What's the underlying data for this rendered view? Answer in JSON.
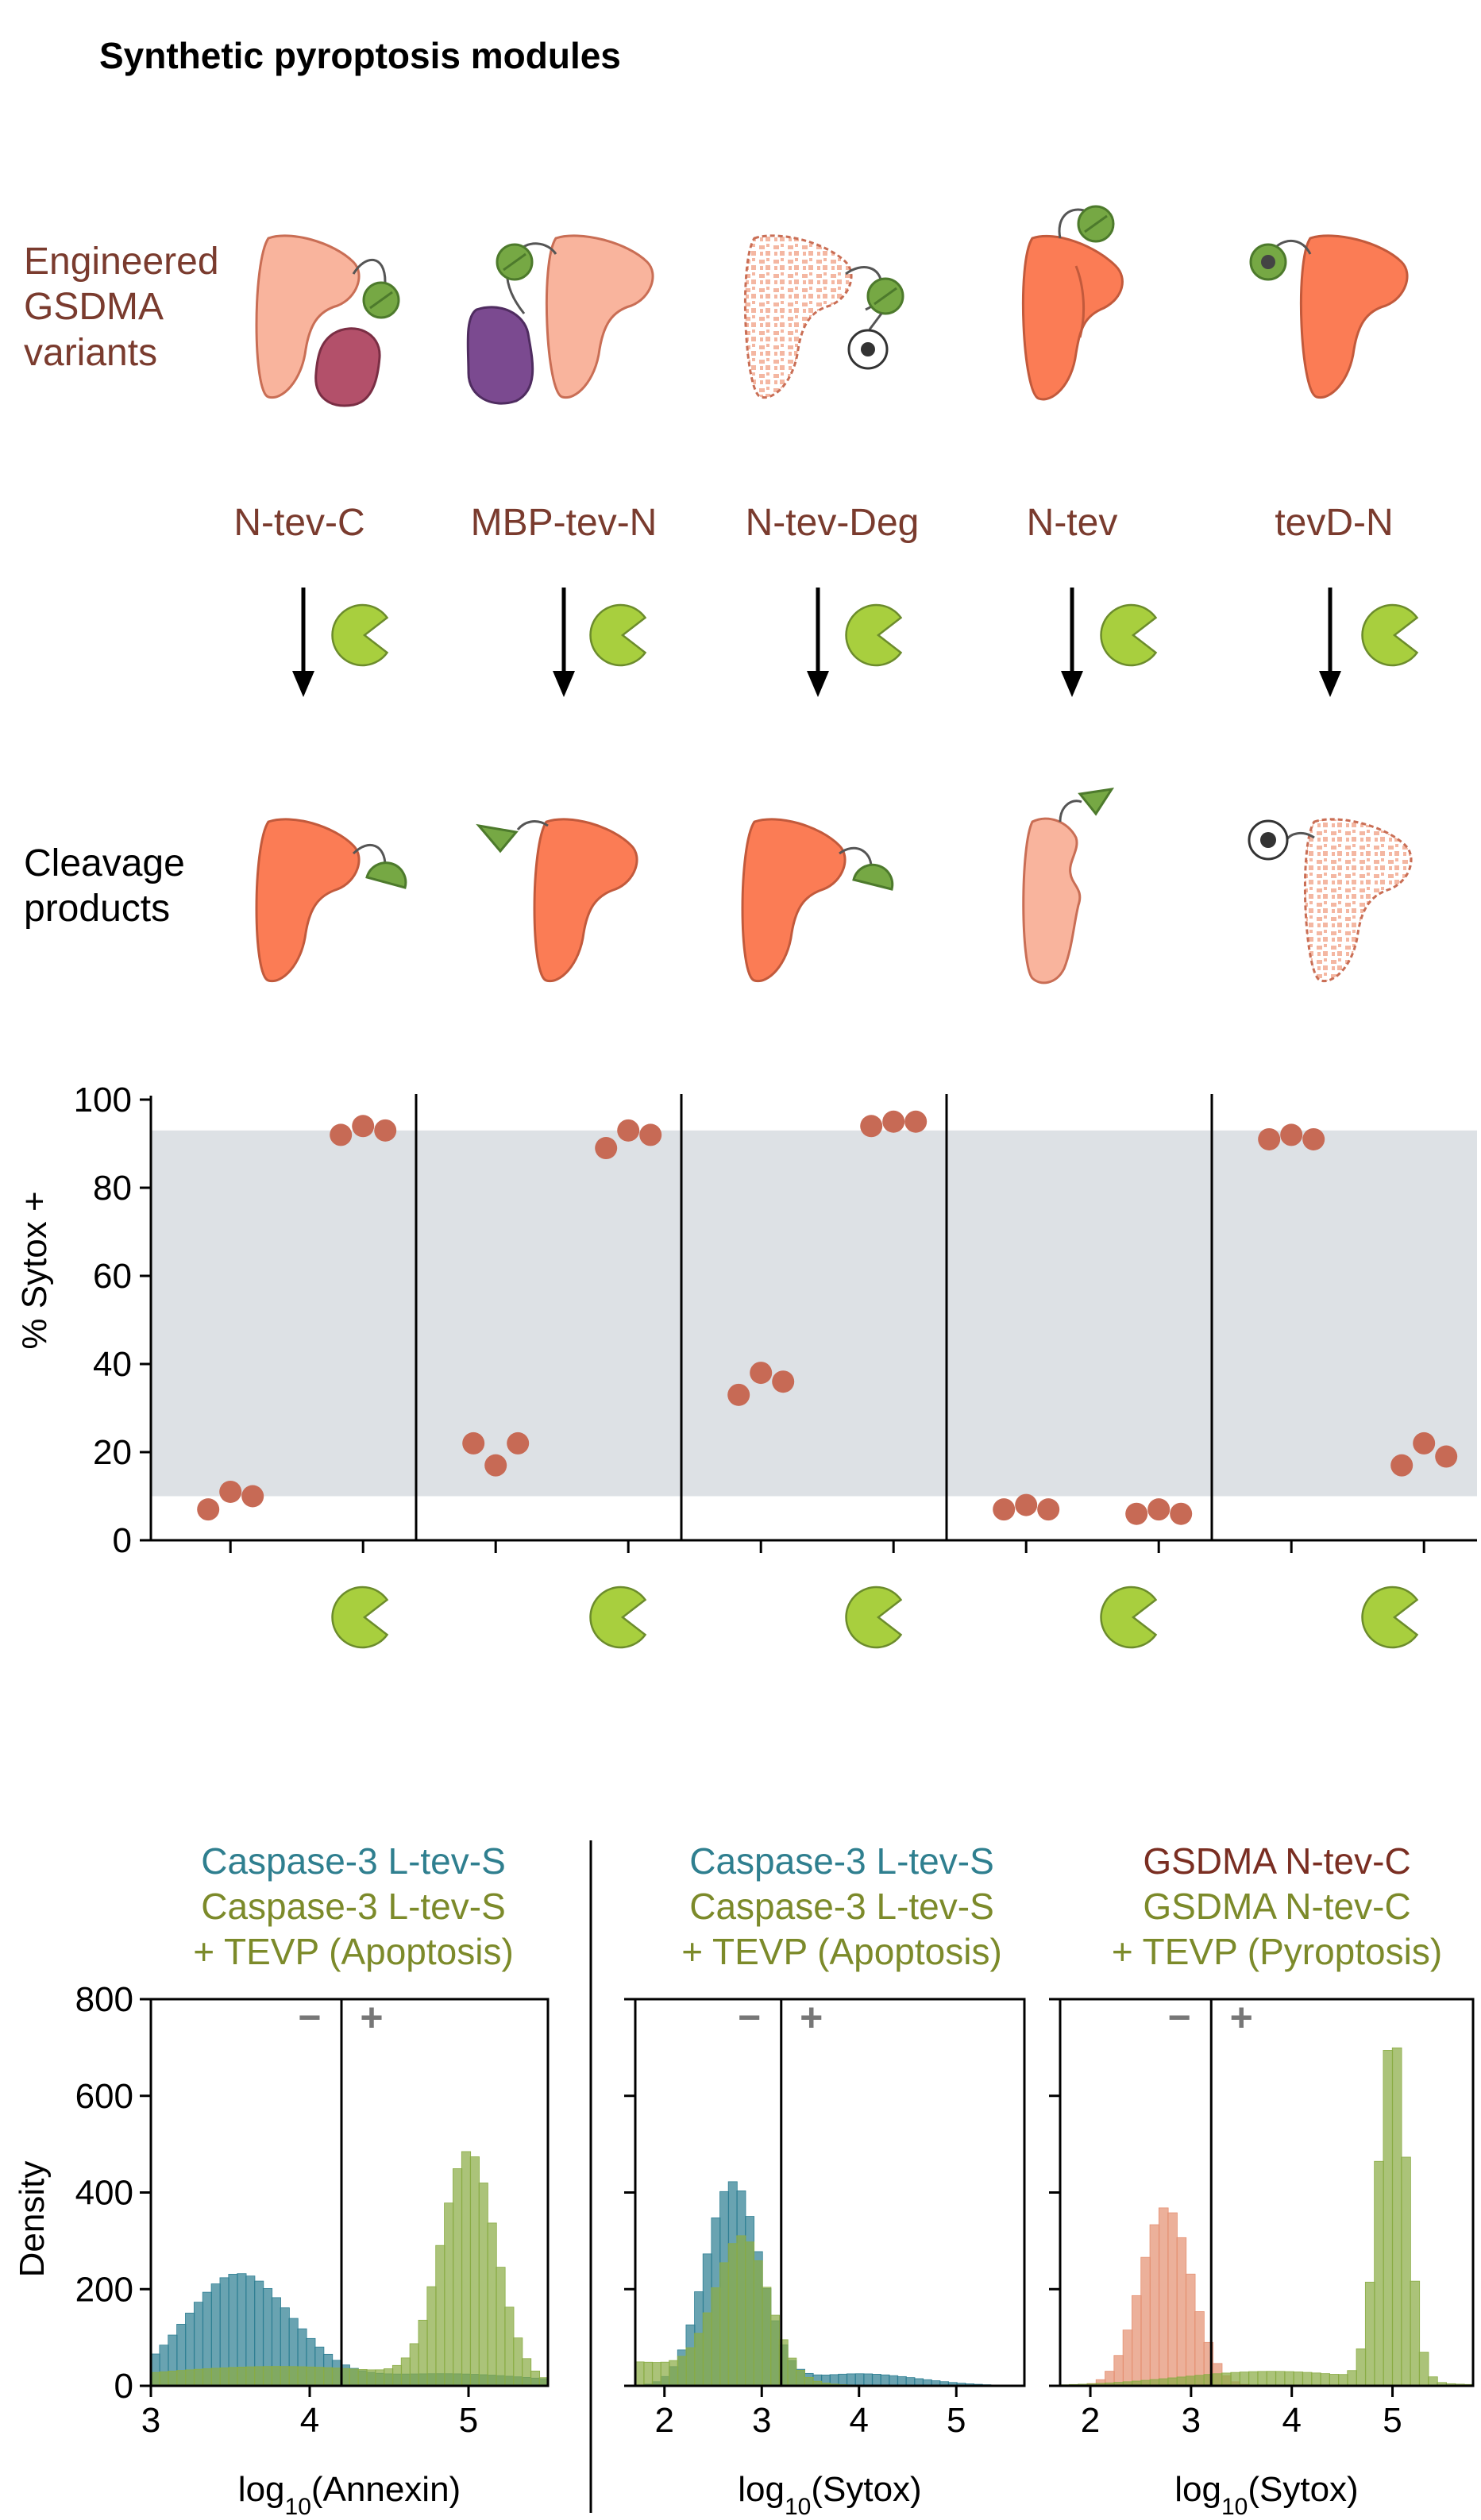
{
  "figure_title": "Synthetic pyroptosis modules",
  "row_labels": {
    "engineered": [
      "Engineered",
      "GSDMA",
      "variants"
    ],
    "cleavage": [
      "Cleavage",
      "products"
    ]
  },
  "variants": [
    "N-tev-C",
    "MBP-tev-N",
    "N-tev-Deg",
    "N-tev",
    "tevD-N"
  ],
  "colors": {
    "variant_text": "#7a3b2e",
    "n_domain": "#fb7c55",
    "c_domain": "#f9b49d",
    "deg_domain": "#f6c6b3",
    "mbp": "#7b4a90",
    "partner": "#b3506a",
    "tev_site": "#76a844",
    "tevp": "#a8cf3e",
    "dots": "#c76a55",
    "band": "#dde1e5",
    "hist_teal": "#2f7f93",
    "hist_green": "#8aac45",
    "hist_salmon": "#e59173",
    "title_teal": "#2f7f8f",
    "title_olive": "#7c8a2a",
    "title_brown": "#7a2e22"
  },
  "icons": {
    "tevp": "pacman-icon",
    "arrow": "down-arrow-icon",
    "degron": "degron-icon"
  },
  "chart_data": [
    {
      "type": "scatter",
      "ylabel": "% Sytox +",
      "ylim": [
        0,
        100
      ],
      "yticks": [
        0,
        20,
        40,
        60,
        80,
        100
      ],
      "band": [
        10,
        93
      ],
      "groups": [
        {
          "name": "N-tev-C",
          "minus": [
            7,
            11,
            10
          ],
          "plus": [
            92,
            94,
            93
          ]
        },
        {
          "name": "MBP-tev-N",
          "minus": [
            22,
            17,
            22
          ],
          "plus": [
            89,
            93,
            92
          ]
        },
        {
          "name": "N-tev-Deg",
          "minus": [
            33,
            38,
            36
          ],
          "plus": [
            94,
            95,
            95
          ]
        },
        {
          "name": "N-tev",
          "minus": [
            7,
            8,
            7
          ],
          "plus": [
            6,
            7,
            6
          ]
        },
        {
          "name": "tevD-N",
          "minus": [
            91,
            92,
            91
          ],
          "plus": [
            17,
            22,
            19
          ]
        }
      ],
      "xlegend": "TEVP present (+) indicated by pacman icon under second column"
    },
    {
      "type": "bar",
      "title_lines": [
        "Caspase-3 L-tev-S",
        "Caspase-3 L-tev-S",
        "+ TEVP (Apoptosis)"
      ],
      "xlabel_prefix": "log",
      "xlabel_sub": "10",
      "xlabel_suffix": "(Annexin)",
      "ylabel": "Density",
      "xlim": [
        3,
        5.5
      ],
      "ylim": [
        0,
        800
      ],
      "xticks": [
        3,
        4,
        5
      ],
      "yticks": [
        0,
        200,
        400,
        600,
        800
      ],
      "gate": 4.2,
      "gate_minus": "−",
      "gate_plus": "+",
      "series": [
        {
          "name": "Caspase-3 L-tev-S",
          "color": "teal",
          "center": 3.55,
          "sd": 0.33,
          "peak": 230,
          "baseline": 0
        },
        {
          "name": "Caspase-3 L-tev-S + TEVP",
          "color": "green",
          "center": 5.0,
          "sd": 0.17,
          "peak": 470,
          "baseline": 40
        }
      ]
    },
    {
      "type": "bar",
      "title_lines": [
        "Caspase-3 L-tev-S",
        "Caspase-3 L-tev-S",
        "+ TEVP (Apoptosis)"
      ],
      "xlabel_prefix": "log",
      "xlabel_sub": "10",
      "xlabel_suffix": "(Sytox)",
      "xlim": [
        1.7,
        5.7
      ],
      "ylim": [
        0,
        800
      ],
      "xticks": [
        2,
        3,
        4,
        5
      ],
      "gate": 3.2,
      "gate_minus": "−",
      "gate_plus": "+",
      "series": [
        {
          "name": "Caspase-3 L-tev-S",
          "color": "teal",
          "center": 2.7,
          "sd": 0.28,
          "peak": 420,
          "baseline": 0
        },
        {
          "name": "Caspase-3 L-tev-S + TEVP",
          "color": "green",
          "center": 2.8,
          "sd": 0.27,
          "peak": 290,
          "baseline": 50
        }
      ]
    },
    {
      "type": "bar",
      "title_lines": [
        "GSDMA N-tev-C",
        "GSDMA N-tev-C",
        "+ TEVP (Pyroptosis)"
      ],
      "xlabel_prefix": "log",
      "xlabel_sub": "10",
      "xlabel_suffix": "(Sytox)",
      "xlim": [
        1.7,
        5.8
      ],
      "ylim": [
        0,
        800
      ],
      "xticks": [
        2,
        3,
        4,
        5
      ],
      "gate": 3.2,
      "gate_minus": "−",
      "gate_plus": "+",
      "series": [
        {
          "name": "GSDMA N-tev-C",
          "color": "salmon",
          "center": 2.75,
          "sd": 0.25,
          "peak": 370,
          "baseline": 0
        },
        {
          "name": "GSDMA N-tev-C + TEVP",
          "color": "green",
          "center": 5.0,
          "sd": 0.14,
          "peak": 720,
          "baseline": 30
        }
      ]
    }
  ]
}
